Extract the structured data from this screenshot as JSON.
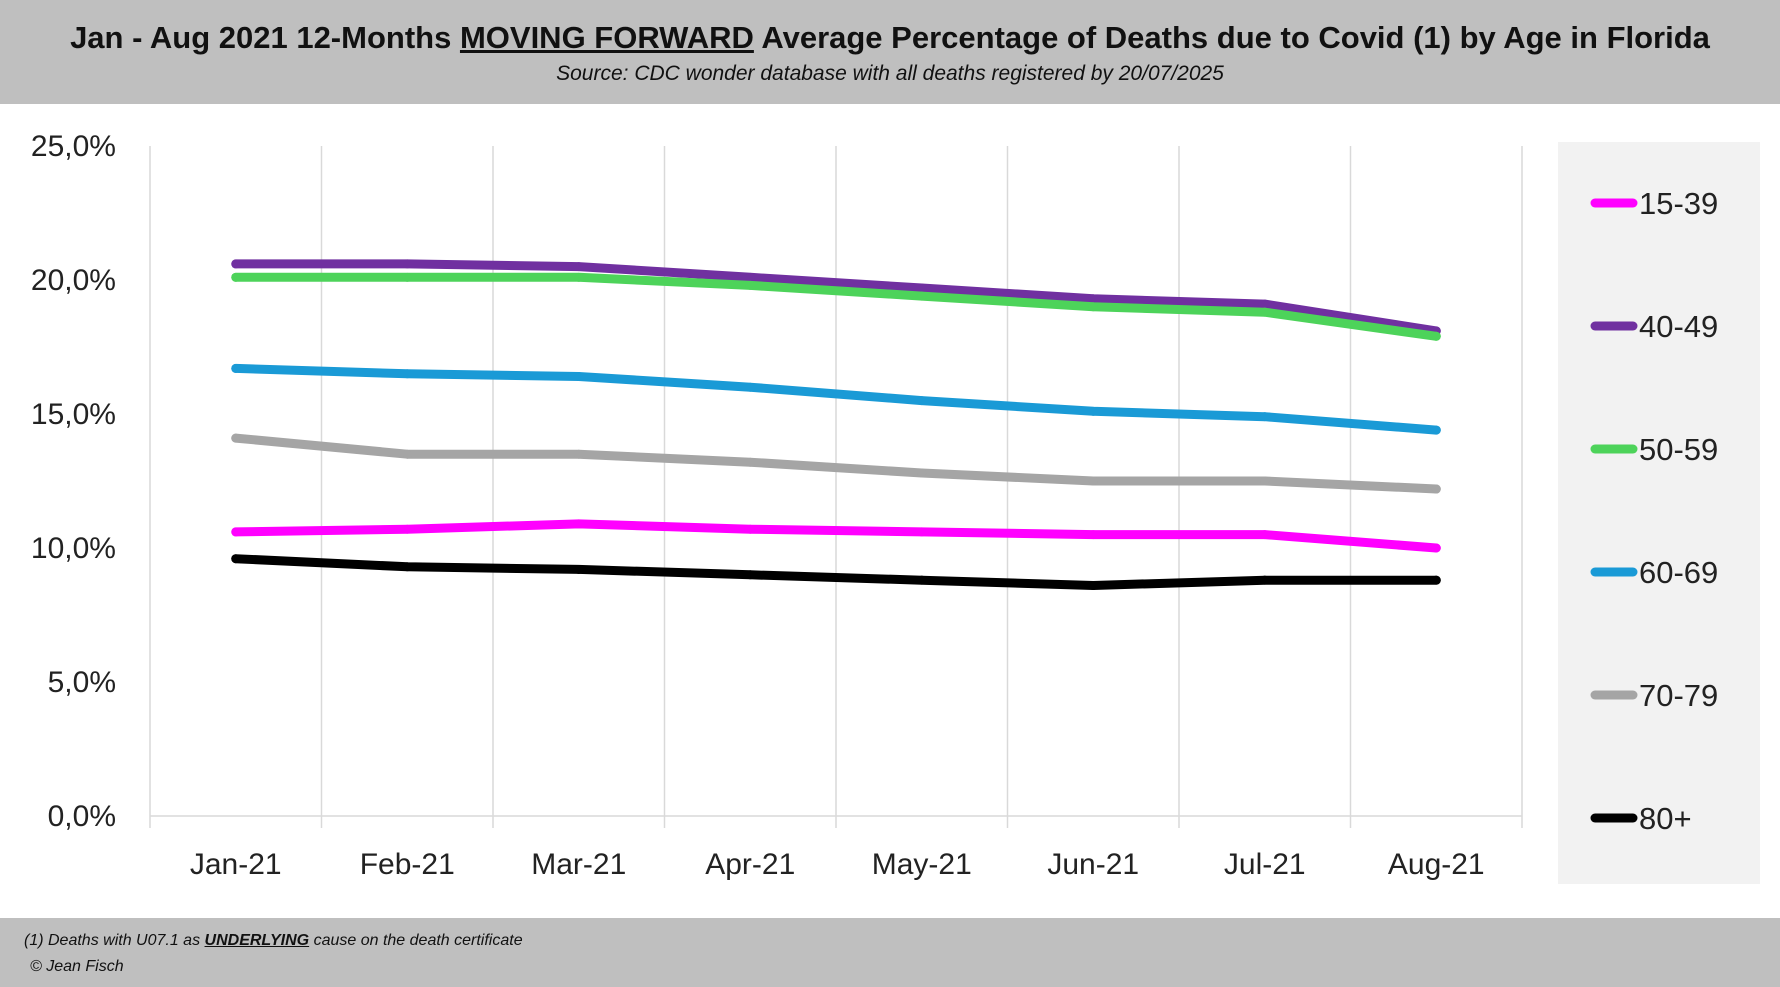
{
  "header": {
    "title_part1": "Jan - Aug 2021 12-Months ",
    "title_underlined": "MOVING FORWARD",
    "title_part2": " Average Percentage of Deaths due to Covid (1) by Age in Florida",
    "subtitle": "Source: CDC wonder database with all deaths registered by 20/07/2025"
  },
  "footer": {
    "note_prefix": "(1) Deaths with U07.1 as ",
    "note_emphasis": "UNDERLYING",
    "note_suffix": " cause on the death certificate",
    "copyright": "© Jean Fisch"
  },
  "chart_data": {
    "type": "line",
    "title": "",
    "xlabel": "",
    "ylabel": "",
    "categories": [
      "Jan-21",
      "Feb-21",
      "Mar-21",
      "Apr-21",
      "May-21",
      "Jun-21",
      "Jul-21",
      "Aug-21"
    ],
    "ylim": [
      0,
      25
    ],
    "yticks": [
      "0,0%",
      "5,0%",
      "10,0%",
      "15,0%",
      "20,0%",
      "25,0%"
    ],
    "grid": "vertical",
    "legend_position": "right",
    "series": [
      {
        "name": "15-39",
        "color": "#ff00ff",
        "values": [
          10.6,
          10.7,
          10.9,
          10.7,
          10.6,
          10.5,
          10.5,
          10.0
        ]
      },
      {
        "name": "40-49",
        "color": "#7030a0",
        "values": [
          20.6,
          20.6,
          20.5,
          20.1,
          19.7,
          19.3,
          19.1,
          18.1
        ]
      },
      {
        "name": "50-59",
        "color": "#4dd35a",
        "values": [
          20.1,
          20.1,
          20.1,
          19.8,
          19.4,
          19.0,
          18.8,
          17.9
        ]
      },
      {
        "name": "60-69",
        "color": "#1a9ad6",
        "values": [
          16.7,
          16.5,
          16.4,
          16.0,
          15.5,
          15.1,
          14.9,
          14.4
        ]
      },
      {
        "name": "70-79",
        "color": "#a5a5a5",
        "values": [
          14.1,
          13.5,
          13.5,
          13.2,
          12.8,
          12.5,
          12.5,
          12.2
        ]
      },
      {
        "name": "80+",
        "color": "#000000",
        "values": [
          9.6,
          9.3,
          9.2,
          9.0,
          8.8,
          8.6,
          8.8,
          8.8
        ]
      }
    ]
  }
}
